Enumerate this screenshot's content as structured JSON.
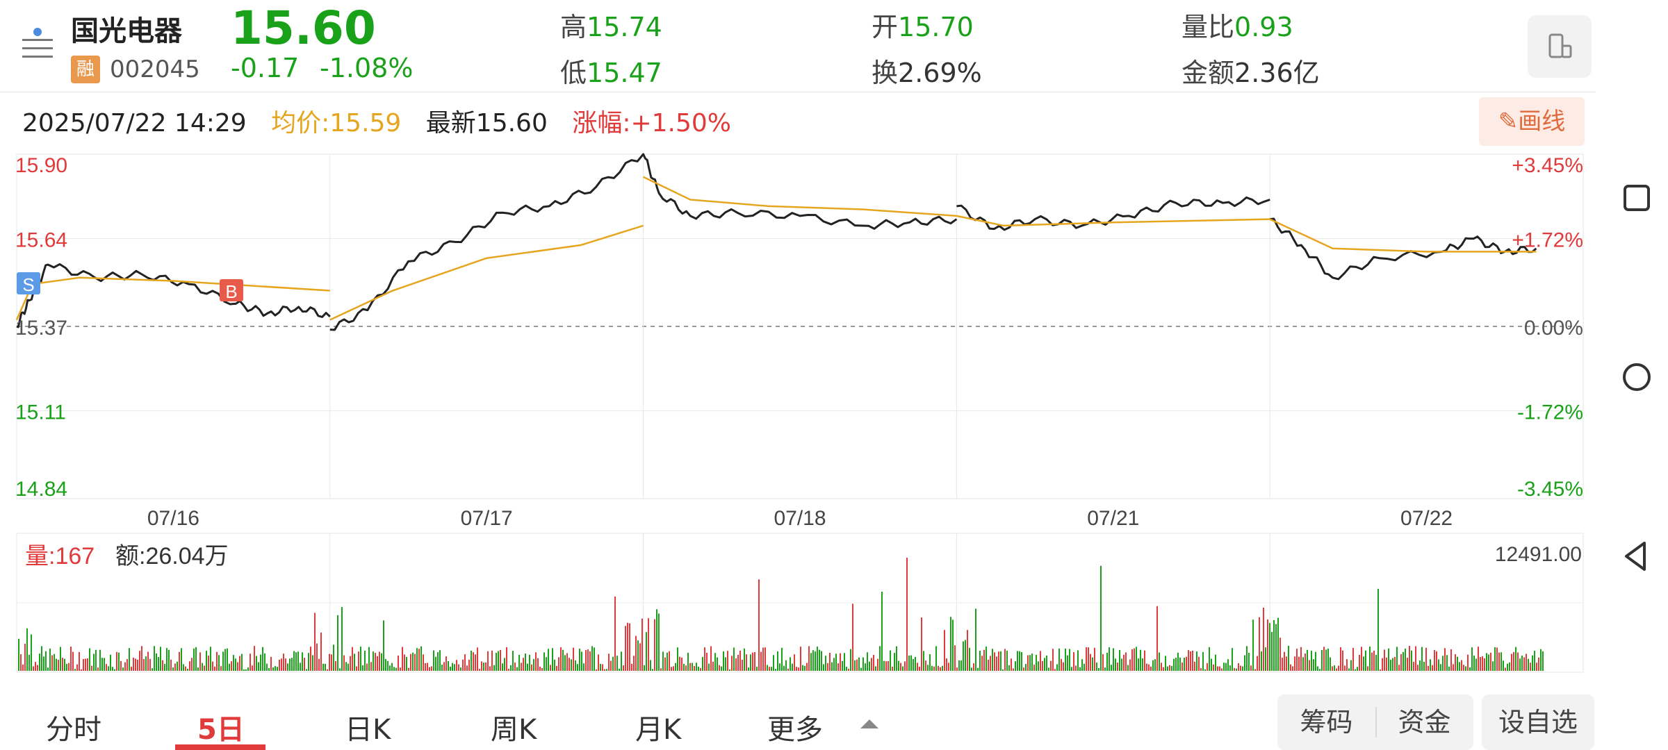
{
  "header": {
    "stock_name": "国光电器",
    "badge": "融",
    "stock_code": "002045",
    "price": "15.60",
    "change": "-0.17",
    "change_pct": "-1.08%",
    "stats": [
      {
        "label": "高",
        "value": "15.74"
      },
      {
        "label": "低",
        "value": "15.47"
      },
      {
        "label": "开",
        "value": "15.70"
      },
      {
        "label": "换",
        "value": "2.69%"
      },
      {
        "label": "量比",
        "value": "0.93"
      },
      {
        "label": "金额",
        "value": "2.36亿"
      }
    ]
  },
  "info_row": {
    "datetime": "2025/07/22 14:29",
    "avg_label": "均价:15.59",
    "latest_label": "最新15.60",
    "rise_label": "涨幅:+1.50%"
  },
  "draw_button": "画线",
  "chart_data": {
    "type": "line",
    "title": "",
    "y_left_ticks": [
      "15.90",
      "15.64",
      "15.37",
      "15.11",
      "14.84"
    ],
    "y_right_ticks": [
      "+3.45%",
      "+1.72%",
      "0.00%",
      "-1.72%",
      "-3.45%"
    ],
    "x_labels": [
      "07/16",
      "07/17",
      "07/18",
      "07/21",
      "07/22"
    ],
    "ylim": [
      14.84,
      15.9
    ],
    "baseline": 15.37,
    "series": [
      {
        "name": "",
        "color": "#222222",
        "points": [
          [
            0.0,
            15.37
          ],
          [
            0.04,
            15.45
          ],
          [
            0.1,
            15.56
          ],
          [
            0.25,
            15.52
          ],
          [
            0.4,
            15.53
          ],
          [
            0.55,
            15.5
          ],
          [
            0.7,
            15.44
          ],
          [
            0.8,
            15.41
          ],
          [
            0.9,
            15.43
          ],
          [
            1.0,
            15.4
          ],
          [
            1.0,
            15.36
          ],
          [
            1.12,
            15.42
          ],
          [
            1.25,
            15.57
          ],
          [
            1.4,
            15.63
          ],
          [
            1.55,
            15.72
          ],
          [
            1.7,
            15.74
          ],
          [
            1.85,
            15.8
          ],
          [
            2.0,
            15.9
          ],
          [
            2.05,
            15.78
          ],
          [
            2.15,
            15.71
          ],
          [
            2.3,
            15.72
          ],
          [
            2.5,
            15.71
          ],
          [
            2.7,
            15.68
          ],
          [
            2.85,
            15.69
          ],
          [
            3.0,
            15.7
          ],
          [
            3.0,
            15.74
          ],
          [
            3.12,
            15.67
          ],
          [
            3.25,
            15.7
          ],
          [
            3.4,
            15.68
          ],
          [
            3.55,
            15.71
          ],
          [
            3.7,
            15.75
          ],
          [
            3.85,
            15.75
          ],
          [
            4.0,
            15.76
          ],
          [
            4.0,
            15.7
          ],
          [
            4.1,
            15.62
          ],
          [
            4.2,
            15.52
          ],
          [
            4.35,
            15.58
          ],
          [
            4.55,
            15.6
          ],
          [
            4.65,
            15.64
          ],
          [
            4.75,
            15.6
          ],
          [
            4.85,
            15.61
          ]
        ]
      },
      {
        "name": "",
        "color": "#e6a51e",
        "points": [
          [
            0.0,
            15.39
          ],
          [
            0.05,
            15.5
          ],
          [
            0.2,
            15.52
          ],
          [
            0.5,
            15.51
          ],
          [
            1.0,
            15.48
          ],
          [
            1.0,
            15.39
          ],
          [
            1.2,
            15.48
          ],
          [
            1.5,
            15.58
          ],
          [
            1.8,
            15.62
          ],
          [
            2.0,
            15.68
          ],
          [
            2.0,
            15.83
          ],
          [
            2.15,
            15.76
          ],
          [
            2.4,
            15.74
          ],
          [
            2.7,
            15.73
          ],
          [
            3.0,
            15.71
          ],
          [
            3.0,
            15.71
          ],
          [
            3.15,
            15.68
          ],
          [
            3.5,
            15.69
          ],
          [
            4.0,
            15.7
          ],
          [
            4.0,
            15.7
          ],
          [
            4.2,
            15.61
          ],
          [
            4.5,
            15.6
          ],
          [
            4.85,
            15.6
          ]
        ]
      }
    ],
    "markers": [
      {
        "label": "S",
        "color": "#5b9be6"
      },
      {
        "label": "B",
        "color": "#e85a4a"
      }
    ],
    "volume_panel": {
      "volume_label": "量:167",
      "amount_label": "额:26.04万",
      "max_label": "12491.00"
    }
  },
  "tabs": [
    {
      "label": "分时",
      "active": false
    },
    {
      "label": "5日",
      "active": true
    },
    {
      "label": "日K",
      "active": false
    },
    {
      "label": "周K",
      "active": false
    },
    {
      "label": "月K",
      "active": false
    },
    {
      "label": "更多",
      "active": false
    }
  ],
  "buttons": {
    "chouma": "筹码",
    "zijin": "资金",
    "zixuan": "设自选"
  },
  "colors": {
    "up": "#e03a3a",
    "down": "#1aa11a",
    "avg": "#e6a51e",
    "price_line": "#222222"
  }
}
